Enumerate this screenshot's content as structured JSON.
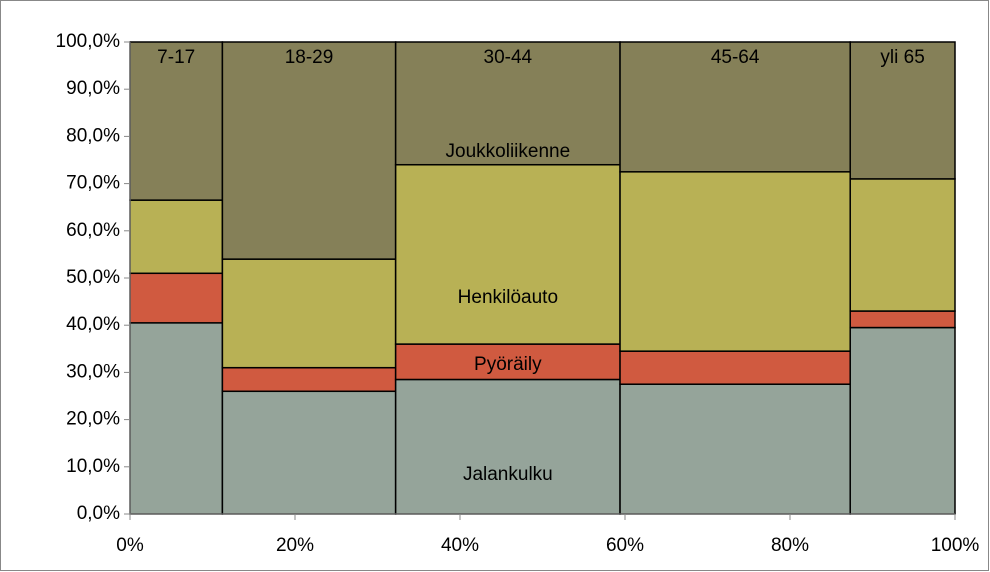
{
  "chart_data": {
    "type": "mosaic",
    "categories": [
      "7-17",
      "18-29",
      "30-44",
      "45-64",
      "yli 65"
    ],
    "widths": [
      11.2,
      21.0,
      27.2,
      27.9,
      12.7
    ],
    "series": [
      {
        "name": "Jalankulku",
        "color": "#95a49a",
        "values": [
          40.5,
          26,
          28.5,
          27.5,
          39.5
        ]
      },
      {
        "name": "Pyöräily",
        "color": "#d05a40",
        "values": [
          10.5,
          5,
          7.5,
          7,
          3.5
        ]
      },
      {
        "name": "Henkilöauto",
        "color": "#b8b155",
        "values": [
          15.5,
          23,
          38,
          38,
          28
        ]
      },
      {
        "name": "Joukkoliikenne",
        "color": "#858058",
        "values": [
          33.5,
          46,
          26,
          27.5,
          29
        ]
      }
    ],
    "xlim": [
      0,
      100
    ],
    "ylim": [
      0,
      100
    ],
    "xticks": [
      {
        "value": 0,
        "label": "0%"
      },
      {
        "value": 20,
        "label": "20%"
      },
      {
        "value": 40,
        "label": "40%"
      },
      {
        "value": 60,
        "label": "60%"
      },
      {
        "value": 80,
        "label": "80%"
      },
      {
        "value": 100,
        "label": "100%"
      }
    ],
    "yticks": [
      {
        "value": 0,
        "label": "0,0%"
      },
      {
        "value": 10,
        "label": "10,0%"
      },
      {
        "value": 20,
        "label": "20,0%"
      },
      {
        "value": 30,
        "label": "30,0%"
      },
      {
        "value": 40,
        "label": "40,0%"
      },
      {
        "value": 50,
        "label": "50,0%"
      },
      {
        "value": 60,
        "label": "60,0%"
      },
      {
        "value": 70,
        "label": "70,0%"
      },
      {
        "value": 80,
        "label": "80,0%"
      },
      {
        "value": 90,
        "label": "90,0%"
      },
      {
        "value": 100,
        "label": "100,0%"
      }
    ]
  }
}
